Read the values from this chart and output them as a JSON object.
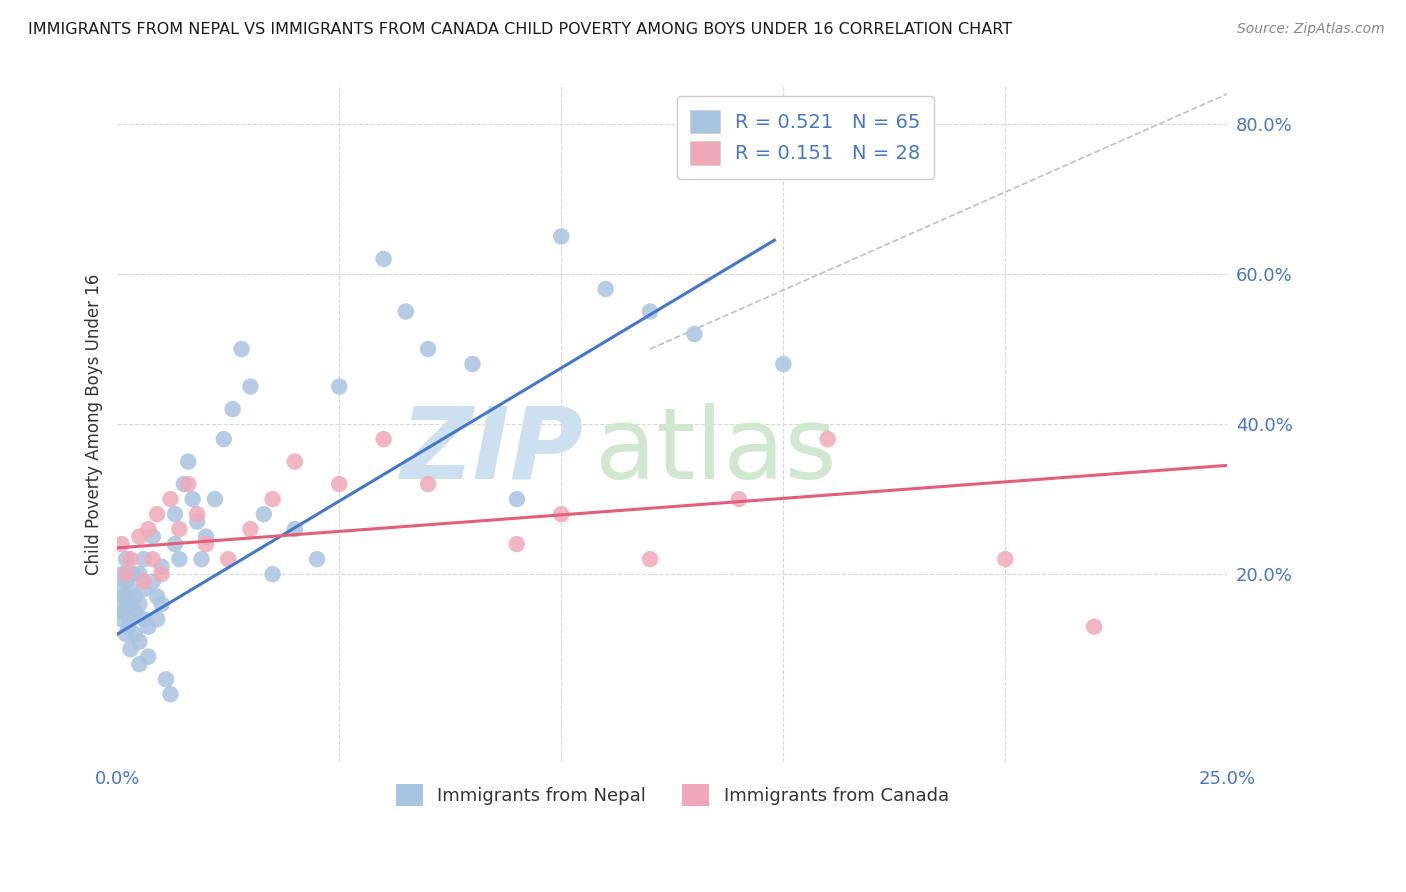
{
  "title": "IMMIGRANTS FROM NEPAL VS IMMIGRANTS FROM CANADA CHILD POVERTY AMONG BOYS UNDER 16 CORRELATION CHART",
  "source": "Source: ZipAtlas.com",
  "ylabel_left": "Child Poverty Among Boys Under 16",
  "xlim": [
    0.0,
    0.25
  ],
  "ylim": [
    -0.05,
    0.85
  ],
  "nepal_color": "#a8c4e0",
  "canada_color": "#f0a8b8",
  "nepal_trend_color": "#4477cc",
  "canada_trend_color": "#e0607a",
  "ref_line_color": "#c0c0c0",
  "grid_color": "#d8d8d8",
  "background_color": "#ffffff",
  "title_color": "#1a1a1a",
  "source_color": "#888888",
  "axis_label_color": "#333333",
  "tick_color": "#4477cc",
  "watermark_zip_color": "#cce0f0",
  "watermark_atlas_color": "#d0e8d0",
  "nepal_scatter_x": [
    0.0005,
    0.001,
    0.001,
    0.001,
    0.0015,
    0.0015,
    0.002,
    0.002,
    0.002,
    0.002,
    0.0025,
    0.003,
    0.003,
    0.003,
    0.003,
    0.0035,
    0.004,
    0.004,
    0.004,
    0.005,
    0.005,
    0.005,
    0.005,
    0.006,
    0.006,
    0.006,
    0.007,
    0.007,
    0.008,
    0.008,
    0.009,
    0.009,
    0.01,
    0.01,
    0.011,
    0.012,
    0.013,
    0.013,
    0.014,
    0.015,
    0.016,
    0.017,
    0.018,
    0.019,
    0.02,
    0.022,
    0.024,
    0.026,
    0.028,
    0.03,
    0.033,
    0.035,
    0.04,
    0.045,
    0.05,
    0.06,
    0.065,
    0.07,
    0.08,
    0.09,
    0.1,
    0.11,
    0.12,
    0.13,
    0.15
  ],
  "nepal_scatter_y": [
    0.18,
    0.2,
    0.16,
    0.14,
    0.17,
    0.15,
    0.19,
    0.17,
    0.22,
    0.12,
    0.13,
    0.16,
    0.18,
    0.14,
    0.1,
    0.2,
    0.15,
    0.17,
    0.12,
    0.2,
    0.16,
    0.11,
    0.08,
    0.22,
    0.18,
    0.14,
    0.13,
    0.09,
    0.25,
    0.19,
    0.17,
    0.14,
    0.16,
    0.21,
    0.06,
    0.04,
    0.28,
    0.24,
    0.22,
    0.32,
    0.35,
    0.3,
    0.27,
    0.22,
    0.25,
    0.3,
    0.38,
    0.42,
    0.5,
    0.45,
    0.28,
    0.2,
    0.26,
    0.22,
    0.45,
    0.62,
    0.55,
    0.5,
    0.48,
    0.3,
    0.65,
    0.58,
    0.55,
    0.52,
    0.48
  ],
  "canada_scatter_x": [
    0.001,
    0.002,
    0.003,
    0.005,
    0.006,
    0.007,
    0.008,
    0.009,
    0.01,
    0.012,
    0.014,
    0.016,
    0.018,
    0.02,
    0.025,
    0.03,
    0.035,
    0.04,
    0.05,
    0.06,
    0.07,
    0.09,
    0.1,
    0.12,
    0.14,
    0.16,
    0.2,
    0.22
  ],
  "canada_scatter_y": [
    0.24,
    0.2,
    0.22,
    0.25,
    0.19,
    0.26,
    0.22,
    0.28,
    0.2,
    0.3,
    0.26,
    0.32,
    0.28,
    0.24,
    0.22,
    0.26,
    0.3,
    0.35,
    0.32,
    0.38,
    0.32,
    0.24,
    0.28,
    0.22,
    0.3,
    0.38,
    0.22,
    0.13
  ],
  "nepal_line_x0": 0.0,
  "nepal_line_x1": 0.148,
  "nepal_line_y0": 0.12,
  "nepal_line_y1": 0.645,
  "canada_line_x0": 0.0,
  "canada_line_x1": 0.25,
  "canada_line_y0": 0.235,
  "canada_line_y1": 0.345,
  "ref_line_x0": 0.12,
  "ref_line_x1": 0.25,
  "ref_line_y0": 0.5,
  "ref_line_y1": 0.84,
  "legend_nepal_label": "R = 0.521   N = 65",
  "legend_canada_label": "R = 0.151   N = 28",
  "bottom_legend_nepal": "Immigrants from Nepal",
  "bottom_legend_canada": "Immigrants from Canada"
}
